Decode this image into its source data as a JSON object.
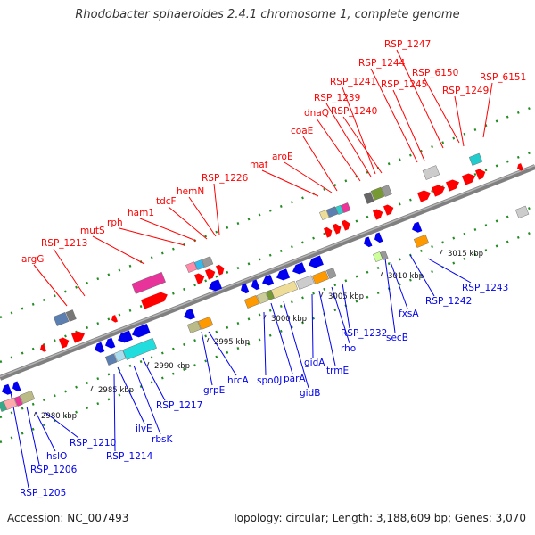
{
  "title": "Rhodobacter sphaeroides 2.4.1 chromosome 1, complete genome",
  "footer": {
    "accession": "Accession: NC_007493",
    "topology": "Topology: circular; Length: 3,188,609 bp; Genes: 3,070"
  },
  "colors": {
    "top_strand_gene": "#ff0000",
    "bottom_strand_gene": "#0000ee",
    "backbone": "#808080",
    "dotted_track": "#228b22"
  },
  "scale_ticks": [
    "2980 kbp",
    "2985 kbp",
    "2990 kbp",
    "2995 kbp",
    "3000 kbp",
    "3005 kbp",
    "3010 kbp",
    "3015 kbp"
  ],
  "top_labels": [
    "argG",
    "RSP_1213",
    "mutS",
    "rph",
    "ham1",
    "tdcF",
    "hemN",
    "RSP_1226",
    "maf",
    "aroE",
    "coaE",
    "dnaQ",
    "RSP_1239",
    "RSP_1240",
    "RSP_1241",
    "RSP_1244",
    "RSP_1245",
    "RSP_1247",
    "RSP_6150",
    "RSP_1249",
    "RSP_6151"
  ],
  "bottom_labels": [
    "RSP_1205",
    "RSP_1206",
    "hslO",
    "RSP_1210",
    "RSP_1214",
    "ilvE",
    "rbsK",
    "RSP_1217",
    "grpE",
    "hrcA",
    "spo0J",
    "parA",
    "gidB",
    "gidA",
    "trmE",
    "rho",
    "RSP_1232",
    "secB",
    "fxsA",
    "RSP_1242",
    "RSP_1243"
  ]
}
